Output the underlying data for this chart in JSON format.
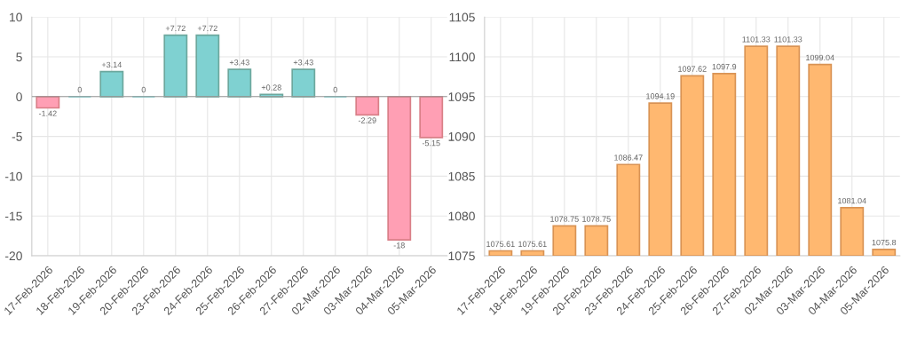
{
  "chart_data": [
    {
      "type": "bar",
      "categories": [
        "17-Feb-2026",
        "18-Feb-2026",
        "19-Feb-2026",
        "20-Feb-2026",
        "23-Feb-2026",
        "24-Feb-2026",
        "25-Feb-2026",
        "26-Feb-2026",
        "27-Feb-2026",
        "02-Mar-2026",
        "03-Mar-2026",
        "04-Mar-2026",
        "05-Mar-2026"
      ],
      "values": [
        -1.42,
        0,
        3.14,
        0,
        7.72,
        7.72,
        3.43,
        0.28,
        3.43,
        0,
        -2.29,
        -18,
        -5.15
      ],
      "value_labels": [
        "-1.42",
        "0",
        "+3.14",
        "0",
        "+7.72",
        "+7.72",
        "+3.43",
        "+0.28",
        "+3.43",
        "0",
        "-2.29",
        "-18",
        "-5.15"
      ],
      "colors": [
        "#ff9fb4",
        "#7fd1d1",
        "#7fd1d1",
        "#7fd1d1",
        "#7fd1d1",
        "#7fd1d1",
        "#7fd1d1",
        "#7fd1d1",
        "#7fd1d1",
        "#7fd1d1",
        "#ff9fb4",
        "#ff9fb4",
        "#ff9fb4"
      ],
      "ylim": [
        -20,
        10
      ],
      "yticks": [
        -20,
        -15,
        -10,
        -5,
        0,
        5,
        10
      ],
      "grid": true
    },
    {
      "type": "bar",
      "categories": [
        "17-Feb-2026",
        "18-Feb-2026",
        "19-Feb-2026",
        "20-Feb-2026",
        "23-Feb-2026",
        "24-Feb-2026",
        "25-Feb-2026",
        "26-Feb-2026",
        "27-Feb-2026",
        "02-Mar-2026",
        "03-Mar-2026",
        "04-Mar-2026",
        "05-Mar-2026"
      ],
      "values": [
        1075.61,
        1075.61,
        1078.75,
        1078.75,
        1086.47,
        1094.19,
        1097.62,
        1097.9,
        1101.33,
        1101.33,
        1099.04,
        1081.04,
        1075.8
      ],
      "data_labels": true,
      "color": "#ffb870",
      "ylim": [
        1075,
        1105
      ],
      "yticks": [
        1075,
        1080,
        1085,
        1090,
        1095,
        1100,
        1105
      ],
      "grid": true
    }
  ]
}
